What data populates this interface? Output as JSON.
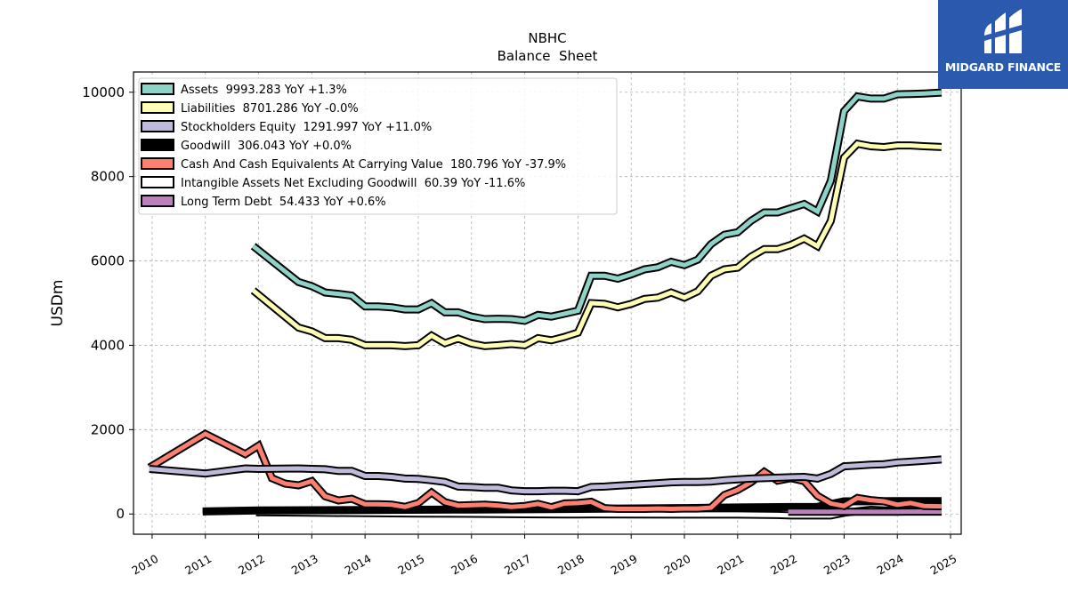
{
  "brand": {
    "name": "MIDGARD FINANCE",
    "color": "#2a59ad"
  },
  "chart_data": {
    "type": "line",
    "title": "NBHC",
    "subtitle": "Balance  Sheet",
    "xlabel": "",
    "ylabel": "USDm",
    "xlim": [
      2009.65,
      2025.2
    ],
    "ylim": [
      -480,
      10480
    ],
    "x_ticks": [
      "2010",
      "2011",
      "2012",
      "2013",
      "2014",
      "2015",
      "2016",
      "2017",
      "2018",
      "2019",
      "2020",
      "2021",
      "2022",
      "2023",
      "2024",
      "2025"
    ],
    "y_ticks": [
      0,
      2000,
      4000,
      6000,
      8000,
      10000
    ],
    "grid": true,
    "legend_position": "upper-left",
    "series": [
      {
        "name": "Assets",
        "legend": "Assets  9993.283 YoY +1.3%",
        "color": "#8dd3c7",
        "points": [
          [
            2011.9,
            6350
          ],
          [
            2012.75,
            5500
          ],
          [
            2013.0,
            5400
          ],
          [
            2013.25,
            5250
          ],
          [
            2013.5,
            5220
          ],
          [
            2013.75,
            5180
          ],
          [
            2014.0,
            4920
          ],
          [
            2014.25,
            4920
          ],
          [
            2014.5,
            4900
          ],
          [
            2014.75,
            4850
          ],
          [
            2015.0,
            4850
          ],
          [
            2015.25,
            5000
          ],
          [
            2015.5,
            4780
          ],
          [
            2015.75,
            4780
          ],
          [
            2016.0,
            4680
          ],
          [
            2016.25,
            4620
          ],
          [
            2016.5,
            4630
          ],
          [
            2016.75,
            4620
          ],
          [
            2017.0,
            4580
          ],
          [
            2017.25,
            4720
          ],
          [
            2017.5,
            4680
          ],
          [
            2017.75,
            4750
          ],
          [
            2018.0,
            4820
          ],
          [
            2018.25,
            5650
          ],
          [
            2018.5,
            5650
          ],
          [
            2018.75,
            5580
          ],
          [
            2019.0,
            5680
          ],
          [
            2019.25,
            5800
          ],
          [
            2019.5,
            5850
          ],
          [
            2019.75,
            5980
          ],
          [
            2020.0,
            5900
          ],
          [
            2020.25,
            6030
          ],
          [
            2020.5,
            6400
          ],
          [
            2020.75,
            6620
          ],
          [
            2021.0,
            6680
          ],
          [
            2021.25,
            6950
          ],
          [
            2021.5,
            7150
          ],
          [
            2021.75,
            7150
          ],
          [
            2022.0,
            7250
          ],
          [
            2022.25,
            7350
          ],
          [
            2022.5,
            7170
          ],
          [
            2022.75,
            7900
          ],
          [
            2023.0,
            9550
          ],
          [
            2023.25,
            9900
          ],
          [
            2023.5,
            9850
          ],
          [
            2023.75,
            9850
          ],
          [
            2024.0,
            9950
          ],
          [
            2024.25,
            9960
          ],
          [
            2024.5,
            9970
          ],
          [
            2024.83,
            9993.283
          ]
        ]
      },
      {
        "name": "Liabilities",
        "legend": "Liabilities  8701.286 YoY -0.0%",
        "color": "#ffffb3",
        "points": [
          [
            2011.9,
            5300
          ],
          [
            2012.75,
            4420
          ],
          [
            2013.0,
            4330
          ],
          [
            2013.25,
            4170
          ],
          [
            2013.5,
            4170
          ],
          [
            2013.75,
            4130
          ],
          [
            2014.0,
            4000
          ],
          [
            2014.25,
            4000
          ],
          [
            2014.5,
            4000
          ],
          [
            2014.75,
            3980
          ],
          [
            2015.0,
            4000
          ],
          [
            2015.25,
            4230
          ],
          [
            2015.5,
            4050
          ],
          [
            2015.75,
            4160
          ],
          [
            2016.0,
            4040
          ],
          [
            2016.25,
            3980
          ],
          [
            2016.5,
            4000
          ],
          [
            2016.75,
            4030
          ],
          [
            2017.0,
            4000
          ],
          [
            2017.25,
            4170
          ],
          [
            2017.5,
            4120
          ],
          [
            2017.75,
            4200
          ],
          [
            2018.0,
            4300
          ],
          [
            2018.25,
            5000
          ],
          [
            2018.5,
            4980
          ],
          [
            2018.75,
            4900
          ],
          [
            2019.0,
            4980
          ],
          [
            2019.25,
            5100
          ],
          [
            2019.5,
            5130
          ],
          [
            2019.75,
            5250
          ],
          [
            2020.0,
            5130
          ],
          [
            2020.25,
            5280
          ],
          [
            2020.5,
            5650
          ],
          [
            2020.75,
            5800
          ],
          [
            2021.0,
            5840
          ],
          [
            2021.25,
            6100
          ],
          [
            2021.5,
            6280
          ],
          [
            2021.75,
            6280
          ],
          [
            2022.0,
            6380
          ],
          [
            2022.25,
            6530
          ],
          [
            2022.5,
            6350
          ],
          [
            2022.75,
            6950
          ],
          [
            2023.0,
            8450
          ],
          [
            2023.25,
            8780
          ],
          [
            2023.5,
            8720
          ],
          [
            2023.75,
            8700
          ],
          [
            2024.0,
            8740
          ],
          [
            2024.25,
            8740
          ],
          [
            2024.5,
            8720
          ],
          [
            2024.83,
            8701.286
          ]
        ]
      },
      {
        "name": "Stockholders Equity",
        "legend": "Stockholders Equity  1291.997 YoY +11.0%",
        "color": "#bebada",
        "points": [
          [
            2009.95,
            1070
          ],
          [
            2011.0,
            960
          ],
          [
            2011.75,
            1080
          ],
          [
            2012.0,
            1070
          ],
          [
            2012.75,
            1080
          ],
          [
            2013.0,
            1070
          ],
          [
            2013.25,
            1060
          ],
          [
            2013.5,
            1020
          ],
          [
            2013.75,
            1020
          ],
          [
            2014.0,
            900
          ],
          [
            2014.25,
            900
          ],
          [
            2014.5,
            880
          ],
          [
            2014.75,
            840
          ],
          [
            2015.0,
            830
          ],
          [
            2015.25,
            800
          ],
          [
            2015.5,
            760
          ],
          [
            2015.75,
            650
          ],
          [
            2016.0,
            640
          ],
          [
            2016.25,
            620
          ],
          [
            2016.5,
            620
          ],
          [
            2016.75,
            560
          ],
          [
            2017.0,
            540
          ],
          [
            2017.25,
            540
          ],
          [
            2017.5,
            550
          ],
          [
            2017.75,
            550
          ],
          [
            2018.0,
            540
          ],
          [
            2018.25,
            640
          ],
          [
            2018.5,
            650
          ],
          [
            2018.75,
            670
          ],
          [
            2019.0,
            690
          ],
          [
            2019.25,
            710
          ],
          [
            2019.5,
            730
          ],
          [
            2019.75,
            750
          ],
          [
            2020.0,
            760
          ],
          [
            2020.25,
            760
          ],
          [
            2020.5,
            770
          ],
          [
            2020.75,
            800
          ],
          [
            2021.0,
            820
          ],
          [
            2021.25,
            840
          ],
          [
            2021.5,
            850
          ],
          [
            2021.75,
            860
          ],
          [
            2022.0,
            870
          ],
          [
            2022.25,
            880
          ],
          [
            2022.5,
            840
          ],
          [
            2022.75,
            950
          ],
          [
            2023.0,
            1130
          ],
          [
            2023.25,
            1150
          ],
          [
            2023.5,
            1170
          ],
          [
            2023.75,
            1180
          ],
          [
            2024.0,
            1220
          ],
          [
            2024.25,
            1240
          ],
          [
            2024.5,
            1260
          ],
          [
            2024.83,
            1291.997
          ]
        ]
      },
      {
        "name": "Goodwill",
        "legend": "Goodwill  306.043 YoY +0.0%",
        "color": "#000000",
        "points": [
          [
            2010.95,
            59
          ],
          [
            2012.0,
            85
          ],
          [
            2014.0,
            95
          ],
          [
            2016.0,
            105
          ],
          [
            2018.0,
            120
          ],
          [
            2020.0,
            140
          ],
          [
            2021.0,
            155
          ],
          [
            2022.0,
            165
          ],
          [
            2022.5,
            170
          ],
          [
            2023.0,
            300
          ],
          [
            2024.0,
            306
          ],
          [
            2024.83,
            306.043
          ]
        ]
      },
      {
        "name": "Cash And Cash Equivalents At Carrying Value",
        "legend": "Cash And Cash Equivalents At Carrying Value  180.796 YoY -37.9%",
        "color": "#fb8072",
        "points": [
          [
            2009.95,
            1100
          ],
          [
            2011.0,
            1900
          ],
          [
            2011.75,
            1420
          ],
          [
            2012.0,
            1620
          ],
          [
            2012.25,
            850
          ],
          [
            2012.5,
            720
          ],
          [
            2012.75,
            680
          ],
          [
            2013.0,
            780
          ],
          [
            2013.25,
            420
          ],
          [
            2013.5,
            320
          ],
          [
            2013.75,
            360
          ],
          [
            2014.0,
            230
          ],
          [
            2014.25,
            230
          ],
          [
            2014.5,
            220
          ],
          [
            2014.75,
            170
          ],
          [
            2015.0,
            260
          ],
          [
            2015.25,
            510
          ],
          [
            2015.5,
            280
          ],
          [
            2015.75,
            200
          ],
          [
            2016.0,
            210
          ],
          [
            2016.25,
            220
          ],
          [
            2016.5,
            200
          ],
          [
            2016.75,
            170
          ],
          [
            2017.0,
            190
          ],
          [
            2017.25,
            240
          ],
          [
            2017.5,
            160
          ],
          [
            2017.75,
            250
          ],
          [
            2018.0,
            260
          ],
          [
            2018.25,
            290
          ],
          [
            2018.5,
            140
          ],
          [
            2018.75,
            120
          ],
          [
            2019.0,
            120
          ],
          [
            2019.25,
            120
          ],
          [
            2019.5,
            130
          ],
          [
            2019.75,
            120
          ],
          [
            2020.0,
            130
          ],
          [
            2020.25,
            130
          ],
          [
            2020.5,
            150
          ],
          [
            2020.75,
            450
          ],
          [
            2021.0,
            570
          ],
          [
            2021.25,
            750
          ],
          [
            2021.5,
            1000
          ],
          [
            2021.75,
            790
          ],
          [
            2022.0,
            850
          ],
          [
            2022.25,
            780
          ],
          [
            2022.5,
            430
          ],
          [
            2022.75,
            250
          ],
          [
            2023.0,
            190
          ],
          [
            2023.25,
            380
          ],
          [
            2023.5,
            330
          ],
          [
            2023.75,
            300
          ],
          [
            2024.0,
            220
          ],
          [
            2024.25,
            260
          ],
          [
            2024.5,
            190
          ],
          [
            2024.83,
            180.796
          ]
        ]
      },
      {
        "name": "Intangible Assets Net Excluding Goodwill",
        "legend": "Intangible Assets Net Excluding Goodwill  60.39 YoY -11.6%",
        "color": "#ffffff",
        "points": [
          [
            2011.95,
            40
          ],
          [
            2013.0,
            30
          ],
          [
            2014.0,
            20
          ],
          [
            2015.0,
            12
          ],
          [
            2016.0,
            5
          ],
          [
            2017.0,
            -5
          ],
          [
            2018.0,
            -12
          ],
          [
            2018.25,
            -8
          ],
          [
            2019.0,
            -12
          ],
          [
            2020.0,
            -15
          ],
          [
            2021.0,
            -15
          ],
          [
            2021.75,
            -25
          ],
          [
            2022.0,
            -35
          ],
          [
            2022.75,
            -35
          ],
          [
            2023.0,
            30
          ],
          [
            2023.5,
            100
          ],
          [
            2024.0,
            70
          ],
          [
            2024.83,
            60.39
          ]
        ]
      },
      {
        "name": "Long Term Debt",
        "legend": "Long Term Debt  54.433 YoY +0.6%",
        "color": "#bc80bd",
        "points": [
          [
            2021.95,
            54
          ],
          [
            2022.5,
            54
          ],
          [
            2023.0,
            54
          ],
          [
            2024.0,
            54
          ],
          [
            2024.83,
            54.433
          ]
        ]
      }
    ]
  }
}
